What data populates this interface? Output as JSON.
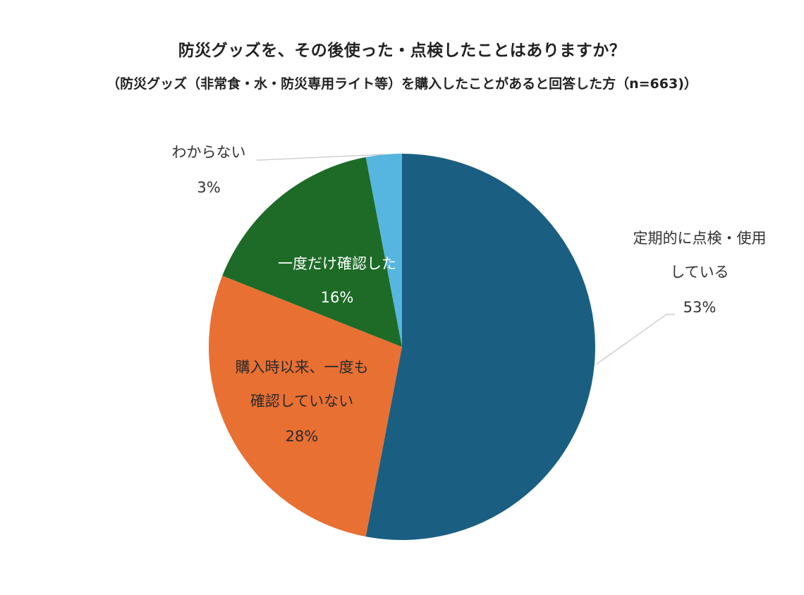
{
  "chart_data": {
    "type": "pie",
    "title": "防災グッズを、その後使った・点検したことはありますか？",
    "subtitle": "（防災グッズ（非常食・水・防災専用ライト等）を購入したことがあると回答した方（n=663)）",
    "start_angle_deg": 0,
    "direction": "clockwise",
    "slices": [
      {
        "label_lines": [
          "定期的に点検・使用",
          "している"
        ],
        "value": 53,
        "value_label": "53%",
        "color": "#1a5f82"
      },
      {
        "label_lines": [
          "購入時以来、一度も",
          "確認していない"
        ],
        "value": 28,
        "value_label": "28%",
        "color": "#e87033"
      },
      {
        "label_lines": [
          "一度だけ確認した"
        ],
        "value": 16,
        "value_label": "16%",
        "color": "#1d6b27"
      },
      {
        "label_lines": [
          "わからない"
        ],
        "value": 3,
        "value_label": "3%",
        "color": "#56b6e0"
      }
    ]
  }
}
